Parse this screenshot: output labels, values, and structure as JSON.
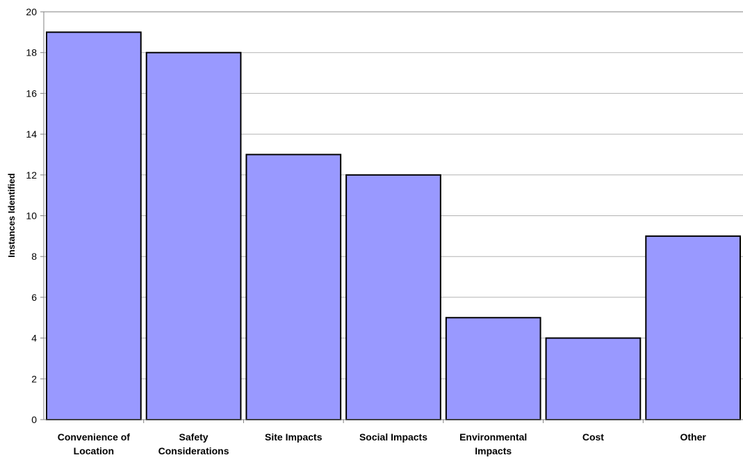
{
  "chart_data": {
    "type": "bar",
    "title": "",
    "xlabel": "",
    "ylabel": "Instances Identified",
    "ylim": [
      0,
      20
    ],
    "y_ticks": [
      0,
      2,
      4,
      6,
      8,
      10,
      12,
      14,
      16,
      18,
      20
    ],
    "grid": true,
    "categories": [
      [
        "Convenience of",
        "Location"
      ],
      [
        "Safety",
        "Considerations"
      ],
      [
        "Site Impacts"
      ],
      [
        "Social Impacts"
      ],
      [
        "Environmental",
        "Impacts"
      ],
      [
        "Cost"
      ],
      [
        "Other"
      ]
    ],
    "values": [
      19,
      18,
      13,
      12,
      5,
      4,
      9
    ],
    "colors": {
      "bar_fill": "#9999ff",
      "bar_stroke": "#000000",
      "grid": "#b3b3b3",
      "axis": "#808080"
    }
  }
}
